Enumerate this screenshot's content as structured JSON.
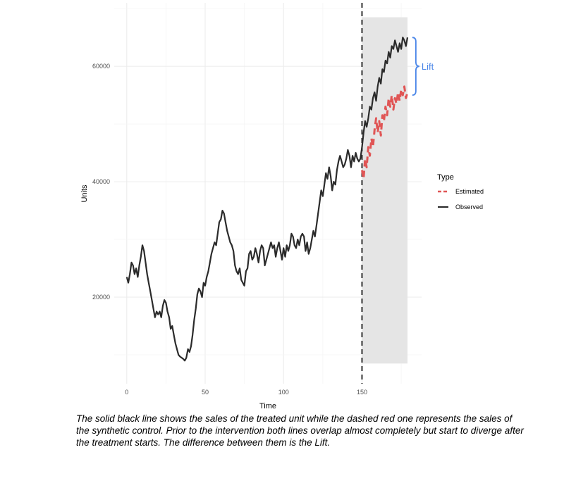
{
  "chart_data": {
    "type": "line",
    "xlabel": "Time",
    "ylabel": "Units",
    "xlim": [
      -8,
      188
    ],
    "ylim": [
      5000,
      71000
    ],
    "x_ticks": [
      0,
      50,
      100,
      150
    ],
    "y_ticks": [
      20000,
      40000,
      60000
    ],
    "grid": true,
    "legend_placement": "right",
    "legend_title": "Type",
    "intervention_x": 150,
    "shaded_region": {
      "x": [
        150,
        179
      ],
      "y": [
        8500,
        68500
      ],
      "color": "#e5e5e5"
    },
    "series": [
      {
        "name": "Estimated",
        "color": "#e05555",
        "style": "dashed",
        "x": [
          150,
          151,
          152,
          153,
          154,
          155,
          156,
          157,
          158,
          159,
          160,
          161,
          162,
          163,
          164,
          165,
          166,
          167,
          168,
          169,
          170,
          171,
          172,
          173,
          174,
          175,
          176,
          177,
          178,
          179
        ],
        "values": [
          42000,
          40500,
          44000,
          42500,
          46000,
          44500,
          47500,
          46000,
          49000,
          51000,
          48500,
          50500,
          48000,
          51500,
          50500,
          53000,
          51500,
          54500,
          53000,
          55000,
          52500,
          54500,
          53500,
          55500,
          54000,
          56000,
          55000,
          56500,
          54500,
          55500
        ]
      },
      {
        "name": "Observed",
        "color": "#2b2b2b",
        "style": "solid",
        "x": [
          0,
          1,
          2,
          3,
          4,
          5,
          6,
          7,
          8,
          9,
          10,
          11,
          12,
          13,
          14,
          15,
          16,
          17,
          18,
          19,
          20,
          21,
          22,
          23,
          24,
          25,
          26,
          27,
          28,
          29,
          30,
          31,
          32,
          33,
          34,
          35,
          36,
          37,
          38,
          39,
          40,
          41,
          42,
          43,
          44,
          45,
          46,
          47,
          48,
          49,
          50,
          51,
          52,
          53,
          54,
          55,
          56,
          57,
          58,
          59,
          60,
          61,
          62,
          63,
          64,
          65,
          66,
          67,
          68,
          69,
          70,
          71,
          72,
          73,
          74,
          75,
          76,
          77,
          78,
          79,
          80,
          81,
          82,
          83,
          84,
          85,
          86,
          87,
          88,
          89,
          90,
          91,
          92,
          93,
          94,
          95,
          96,
          97,
          98,
          99,
          100,
          101,
          102,
          103,
          104,
          105,
          106,
          107,
          108,
          109,
          110,
          111,
          112,
          113,
          114,
          115,
          116,
          117,
          118,
          119,
          120,
          121,
          122,
          123,
          124,
          125,
          126,
          127,
          128,
          129,
          130,
          131,
          132,
          133,
          134,
          135,
          136,
          137,
          138,
          139,
          140,
          141,
          142,
          143,
          144,
          145,
          146,
          147,
          148,
          149,
          150,
          151,
          152,
          153,
          154,
          155,
          156,
          157,
          158,
          159,
          160,
          161,
          162,
          163,
          164,
          165,
          166,
          167,
          168,
          169,
          170,
          171,
          172,
          173,
          174,
          175,
          176,
          177,
          178,
          179
        ],
        "values": [
          23500,
          22500,
          24000,
          26000,
          25500,
          24000,
          25000,
          23500,
          25500,
          27000,
          29000,
          28000,
          26000,
          24000,
          22500,
          21000,
          19500,
          18000,
          16500,
          17500,
          17000,
          17500,
          16500,
          18500,
          19500,
          19000,
          17500,
          16500,
          14500,
          15000,
          13500,
          12000,
          11000,
          10000,
          9700,
          9500,
          9300,
          9000,
          9500,
          11000,
          10500,
          11500,
          13500,
          16000,
          18000,
          20500,
          21500,
          21000,
          20000,
          22500,
          22000,
          23500,
          24500,
          26000,
          27500,
          28500,
          29500,
          29000,
          31000,
          33000,
          33500,
          35000,
          34500,
          33000,
          31500,
          30500,
          29500,
          29000,
          28000,
          25500,
          24500,
          24000,
          25000,
          23000,
          22500,
          22000,
          24500,
          25000,
          27500,
          28000,
          26500,
          27000,
          28500,
          27500,
          26000,
          28000,
          29000,
          28500,
          25500,
          26500,
          27500,
          28500,
          29500,
          28500,
          29000,
          27000,
          28500,
          29500,
          28000,
          26500,
          28500,
          27000,
          29000,
          28000,
          29000,
          31000,
          30500,
          29000,
          28500,
          30000,
          29000,
          30500,
          31000,
          30500,
          28000,
          29500,
          27500,
          28500,
          30000,
          31500,
          30500,
          32500,
          34500,
          36500,
          38500,
          37500,
          39500,
          41500,
          40500,
          42500,
          41000,
          38500,
          40000,
          39500,
          42000,
          43500,
          44500,
          43500,
          42500,
          43000,
          44000,
          45500,
          44500,
          42500,
          44500,
          43500,
          45000,
          44000,
          43500,
          44000,
          46000,
          48500,
          50500,
          49500,
          51000,
          53000,
          52500,
          54500,
          55500,
          54000,
          56500,
          58000,
          57000,
          59500,
          59000,
          61000,
          60500,
          62500,
          61500,
          63500,
          63000,
          64500,
          63500,
          62500,
          64000,
          63000,
          65000,
          64500,
          63500,
          65000
        ]
      }
    ],
    "annotations": [
      {
        "text": "Lift",
        "x": 183,
        "y": 60000,
        "brace_y": [
          55000,
          65000
        ],
        "color": "#4a86e8"
      }
    ]
  },
  "caption": "The solid black line shows the sales of the treated unit while the dashed red one represents the sales of the synthetic control. Prior to the intervention both lines overlap almost completely but start to diverge after the treatment starts. The difference between them is the Lift."
}
